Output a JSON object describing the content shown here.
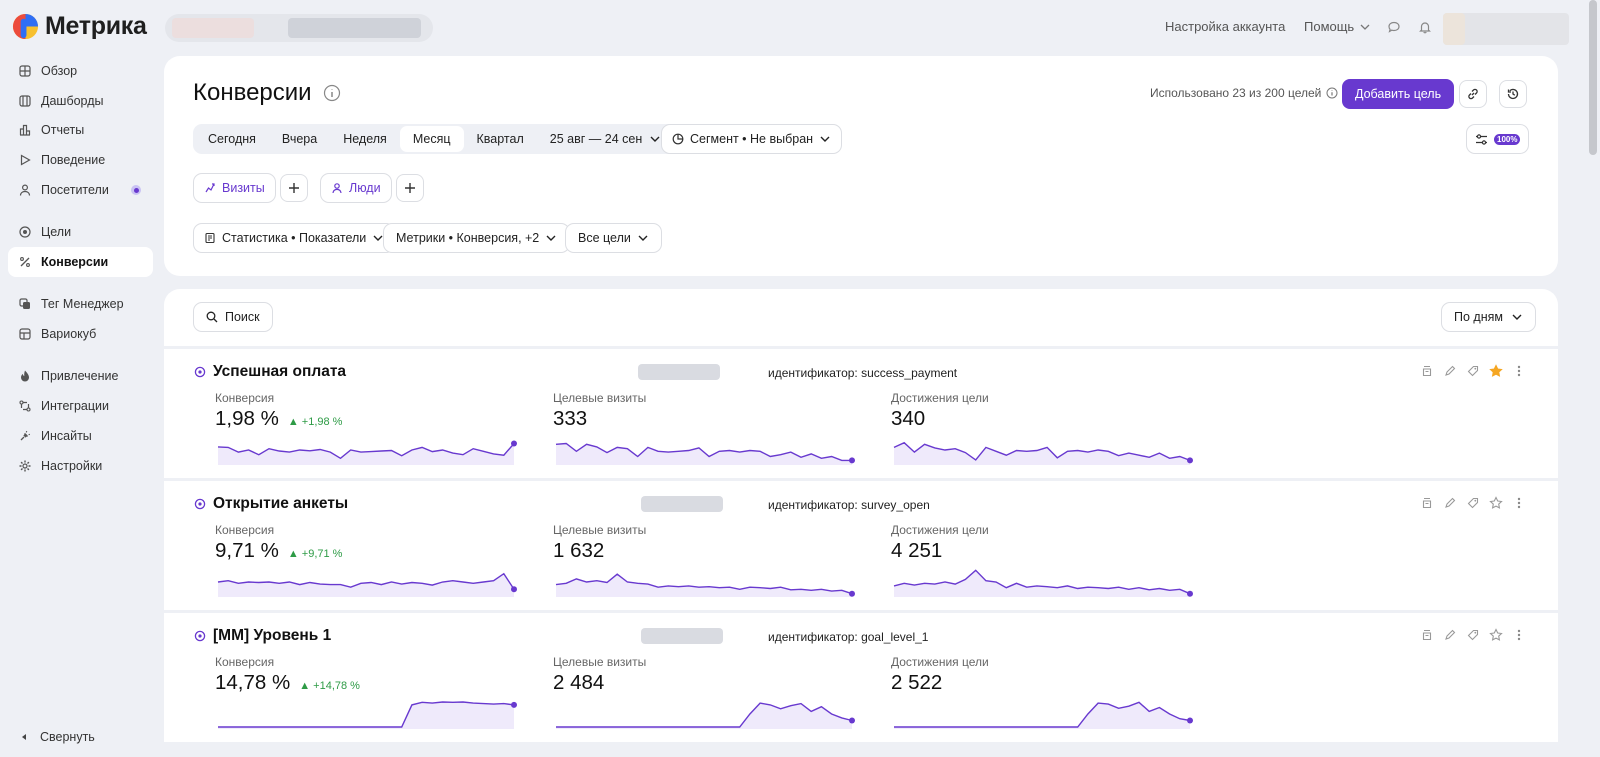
{
  "app": {
    "logo_text": "Метрика"
  },
  "topbar": {
    "account_settings": "Настройка аккаунта",
    "help": "Помощь"
  },
  "sidebar": {
    "items": [
      {
        "label": "Обзор",
        "icon": "overview-icon"
      },
      {
        "label": "Дашборды",
        "icon": "dashboards-icon"
      },
      {
        "label": "Отчеты",
        "icon": "reports-icon"
      },
      {
        "label": "Поведение",
        "icon": "play-icon"
      },
      {
        "label": "Посетители",
        "icon": "person-icon"
      },
      {
        "label": "Цели",
        "icon": "target-icon"
      },
      {
        "label": "Конверсии",
        "icon": "percent-icon"
      },
      {
        "label": "Тег Менеджер",
        "icon": "tag-manager-icon"
      },
      {
        "label": "Вариокуб",
        "icon": "variocube-icon"
      },
      {
        "label": "Привлечение",
        "icon": "fire-icon"
      },
      {
        "label": "Интеграции",
        "icon": "integrations-icon"
      },
      {
        "label": "Инсайты",
        "icon": "insights-icon"
      },
      {
        "label": "Настройки",
        "icon": "gear-icon"
      }
    ],
    "collapse": "Свернуть"
  },
  "header": {
    "title": "Конверсии",
    "usage": "Использовано 23 из 200 целей",
    "add_goal": "Добавить цель",
    "periods": [
      "Сегодня",
      "Вчера",
      "Неделя",
      "Месяц",
      "Квартал"
    ],
    "selected_period": "Месяц",
    "date_range": "25 авг — 24 сен",
    "segment": "Сегмент • Не выбран",
    "sampling": "100%",
    "visits": "Визиты",
    "people": "Люди",
    "stats_filter": "Статистика • Показатели",
    "metrics_filter": "Метрики • Конверсия, +2",
    "goals_filter": "Все цели"
  },
  "toolbar": {
    "search": "Поиск",
    "grouping": "По дням"
  },
  "metric_labels": {
    "conversion": "Конверсия",
    "target_visits": "Целевые визиты",
    "achievements": "Достижения цели"
  },
  "goals": [
    {
      "name": "Успешная оплата",
      "identifier": "идентификатор: success_payment",
      "conversion": "1,98 %",
      "delta": "▲ +1,98 %",
      "target_visits": "333",
      "achievements": "340",
      "starred": true,
      "spark_conv": [
        0.62,
        0.6,
        0.42,
        0.5,
        0.32,
        0.55,
        0.46,
        0.42,
        0.5,
        0.47,
        0.52,
        0.42,
        0.18,
        0.5,
        0.42,
        0.44,
        0.46,
        0.48,
        0.28,
        0.5,
        0.6,
        0.44,
        0.5,
        0.38,
        0.32,
        0.55,
        0.45,
        0.35,
        0.3,
        0.75
      ],
      "spark_visits": [
        0.72,
        0.75,
        0.45,
        0.72,
        0.62,
        0.4,
        0.6,
        0.55,
        0.25,
        0.6,
        0.45,
        0.42,
        0.45,
        0.48,
        0.58,
        0.25,
        0.45,
        0.48,
        0.42,
        0.48,
        0.45,
        0.25,
        0.32,
        0.42,
        0.22,
        0.35,
        0.18,
        0.25,
        0.1,
        0.1
      ],
      "spark_ach": [
        0.6,
        0.78,
        0.42,
        0.72,
        0.58,
        0.5,
        0.55,
        0.4,
        0.12,
        0.6,
        0.45,
        0.3,
        0.48,
        0.45,
        0.48,
        0.6,
        0.2,
        0.45,
        0.48,
        0.42,
        0.5,
        0.45,
        0.28,
        0.38,
        0.3,
        0.22,
        0.38,
        0.18,
        0.25,
        0.1
      ]
    },
    {
      "name": "Открытие анкеты",
      "identifier": "идентификатор: survey_open",
      "conversion": "9,71 %",
      "delta": "▲ +9,71 %",
      "target_visits": "1 632",
      "achievements": "4 251",
      "starred": false,
      "spark_conv": [
        0.5,
        0.55,
        0.45,
        0.5,
        0.48,
        0.5,
        0.45,
        0.5,
        0.4,
        0.48,
        0.42,
        0.4,
        0.4,
        0.3,
        0.45,
        0.48,
        0.4,
        0.5,
        0.42,
        0.48,
        0.45,
        0.38,
        0.5,
        0.55,
        0.5,
        0.45,
        0.5,
        0.55,
        0.82,
        0.22
      ],
      "spark_visits": [
        0.4,
        0.45,
        0.62,
        0.5,
        0.55,
        0.48,
        0.8,
        0.5,
        0.45,
        0.42,
        0.3,
        0.35,
        0.32,
        0.35,
        0.3,
        0.32,
        0.28,
        0.3,
        0.22,
        0.3,
        0.28,
        0.25,
        0.3,
        0.2,
        0.22,
        0.18,
        0.22,
        0.15,
        0.18,
        0.05
      ],
      "spark_ach": [
        0.35,
        0.45,
        0.38,
        0.45,
        0.42,
        0.5,
        0.42,
        0.6,
        0.95,
        0.55,
        0.5,
        0.28,
        0.45,
        0.3,
        0.35,
        0.32,
        0.28,
        0.35,
        0.25,
        0.3,
        0.28,
        0.25,
        0.3,
        0.22,
        0.28,
        0.2,
        0.25,
        0.18,
        0.22,
        0.05
      ]
    },
    {
      "name": "[ММ] Уровень 1",
      "identifier": "идентификатор: goal_level_1",
      "conversion": "14,78 %",
      "delta": "▲ +14,78 %",
      "target_visits": "2 484",
      "achievements": "2 522",
      "starred": false,
      "spark_conv": [
        0,
        0,
        0,
        0,
        0,
        0,
        0,
        0,
        0,
        0,
        0,
        0,
        0,
        0,
        0,
        0,
        0,
        0,
        0,
        0.85,
        0.95,
        0.92,
        0.96,
        0.95,
        0.96,
        0.92,
        0.9,
        0.88,
        0.9,
        0.85
      ],
      "spark_visits": [
        0,
        0,
        0,
        0,
        0,
        0,
        0,
        0,
        0,
        0,
        0,
        0,
        0,
        0,
        0,
        0,
        0,
        0,
        0,
        0.5,
        0.92,
        0.85,
        0.7,
        0.82,
        0.9,
        0.6,
        0.78,
        0.5,
        0.35,
        0.25
      ],
      "spark_ach": [
        0,
        0,
        0,
        0,
        0,
        0,
        0,
        0,
        0,
        0,
        0,
        0,
        0,
        0,
        0,
        0,
        0,
        0,
        0,
        0.5,
        0.92,
        0.88,
        0.72,
        0.8,
        0.95,
        0.6,
        0.75,
        0.5,
        0.32,
        0.25
      ]
    }
  ],
  "colors": {
    "accent": "#6839cf",
    "positive": "#2e9b46",
    "star": "#f5a623"
  }
}
